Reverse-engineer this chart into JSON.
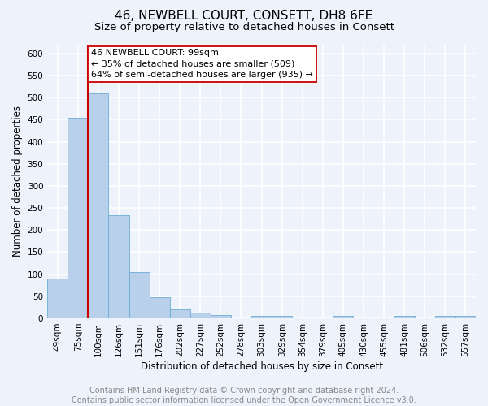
{
  "title": "46, NEWBELL COURT, CONSETT, DH8 6FE",
  "subtitle": "Size of property relative to detached houses in Consett",
  "xlabel": "Distribution of detached houses by size in Consett",
  "ylabel": "Number of detached properties",
  "bar_labels": [
    "49sqm",
    "75sqm",
    "100sqm",
    "126sqm",
    "151sqm",
    "176sqm",
    "202sqm",
    "227sqm",
    "252sqm",
    "278sqm",
    "303sqm",
    "329sqm",
    "354sqm",
    "379sqm",
    "405sqm",
    "430sqm",
    "455sqm",
    "481sqm",
    "506sqm",
    "532sqm",
    "557sqm"
  ],
  "bar_values": [
    90,
    455,
    509,
    234,
    105,
    47,
    21,
    13,
    8,
    0,
    5,
    5,
    0,
    0,
    5,
    0,
    0,
    5,
    0,
    5,
    5
  ],
  "bar_color": "#b8d0ea",
  "bar_edge_color": "#6aaed6",
  "property_label": "46 NEWBELL COURT: 99sqm",
  "annotation_line1": "← 35% of detached houses are smaller (509)",
  "annotation_line2": "64% of semi-detached houses are larger (935) →",
  "vline_color": "#cc0000",
  "annotation_box_color": "#ffffff",
  "annotation_box_edge": "#cc0000",
  "footer_text": "Contains HM Land Registry data © Crown copyright and database right 2024.\nContains public sector information licensed under the Open Government Licence v3.0.",
  "ylim": [
    0,
    620
  ],
  "yticks": [
    0,
    50,
    100,
    150,
    200,
    250,
    300,
    350,
    400,
    450,
    500,
    550,
    600
  ],
  "bg_color": "#edf2fb",
  "grid_color": "#ffffff",
  "title_fontsize": 11,
  "subtitle_fontsize": 9.5,
  "axis_label_fontsize": 8.5,
  "tick_fontsize": 7.5,
  "annotation_fontsize": 8,
  "footer_fontsize": 7
}
